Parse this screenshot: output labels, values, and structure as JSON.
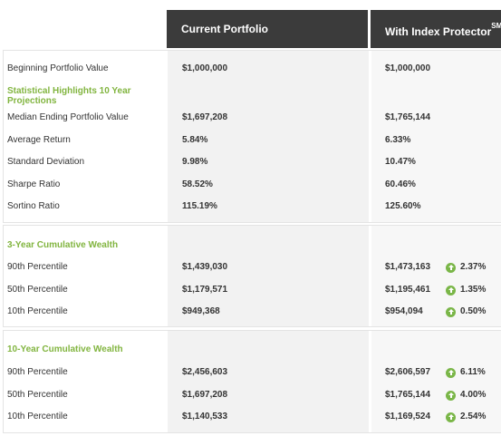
{
  "header": {
    "current": "Current Portfolio",
    "protector": "With Index Protector",
    "protector_sup": "SM"
  },
  "colors": {
    "header_bg": "#3b3b3b",
    "accent_green": "#82b540",
    "up_icon": "#7ab648"
  },
  "summary": {
    "beginning": {
      "label": "Beginning Portfolio Value",
      "current": "$1,000,000",
      "protector": "$1,000,000"
    },
    "highlights_heading": "Statistical Highlights 10 Year Projections",
    "rows": [
      {
        "label": "Median Ending Portfolio Value",
        "current": "$1,697,208",
        "protector": "$1,765,144"
      },
      {
        "label": "Average Return",
        "current": "5.84%",
        "protector": "6.33%"
      },
      {
        "label": "Standard Deviation",
        "current": "9.98%",
        "protector": "10.47%"
      },
      {
        "label": "Sharpe Ratio",
        "current": "58.52%",
        "protector": "60.46%"
      },
      {
        "label": "Sortino Ratio",
        "current": "115.19%",
        "protector": "125.60%"
      }
    ]
  },
  "three_year": {
    "heading": "3-Year Cumulative Wealth",
    "rows": [
      {
        "label": "90th Percentile",
        "current": "$1,439,030",
        "protector": "$1,473,163",
        "change": "2.37%",
        "icon": "arrow-up-circle-icon"
      },
      {
        "label": "50th Percentile",
        "current": "$1,179,571",
        "protector": "$1,195,461",
        "change": "1.35%",
        "icon": "arrow-up-circle-icon"
      },
      {
        "label": "10th Percentile",
        "current": "$949,368",
        "protector": "$954,094",
        "change": "0.50%",
        "icon": "arrow-up-circle-icon"
      }
    ]
  },
  "ten_year": {
    "heading": "10-Year Cumulative Wealth",
    "rows": [
      {
        "label": "90th Percentile",
        "current": "$2,456,603",
        "protector": "$2,606,597",
        "change": "6.11%",
        "icon": "arrow-up-circle-icon"
      },
      {
        "label": "50th Percentile",
        "current": "$1,697,208",
        "protector": "$1,765,144",
        "change": "4.00%",
        "icon": "arrow-up-circle-icon"
      },
      {
        "label": "10th Percentile",
        "current": "$1,140,533",
        "protector": "$1,169,524",
        "change": "2.54%",
        "icon": "arrow-up-circle-icon"
      }
    ]
  }
}
